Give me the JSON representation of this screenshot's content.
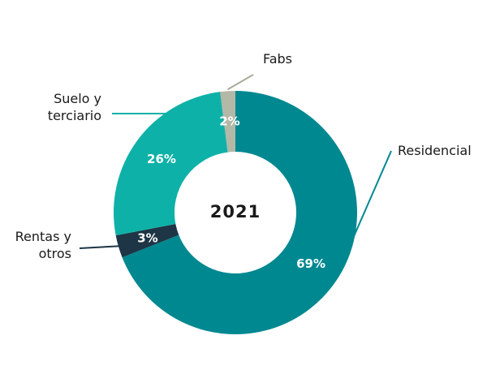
{
  "chart_data": {
    "type": "pie",
    "donut": true,
    "center_label": "2021",
    "slices": [
      {
        "label": [
          "Residencial"
        ],
        "value": 69,
        "value_label": "69%",
        "color": "#008891",
        "leader_color": "#008891"
      },
      {
        "label": [
          "Rentas y",
          "otros"
        ],
        "value": 3,
        "value_label": "3%",
        "color": "#1d3545",
        "leader_color": "#1d3545"
      },
      {
        "label": [
          "Suelo y",
          "terciario"
        ],
        "value": 26,
        "value_label": "26%",
        "color": "#0eb1a8",
        "leader_color": "#0eb1a8"
      },
      {
        "label": [
          "Fabs"
        ],
        "value": 2,
        "value_label": "2%",
        "color": "#b3b8a7",
        "leader_color": "#a8ab9c"
      }
    ],
    "legend": "none"
  }
}
